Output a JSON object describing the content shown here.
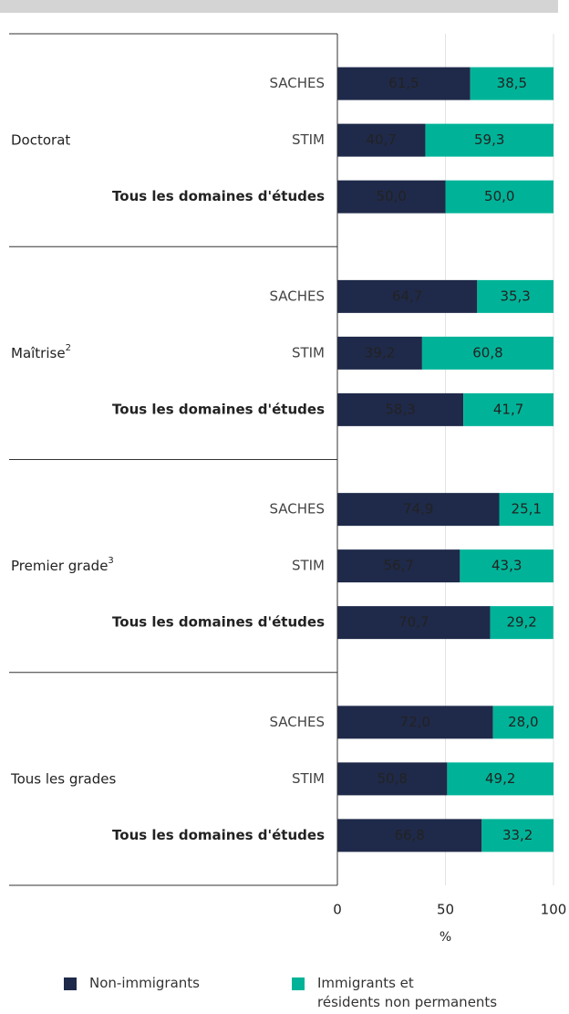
{
  "chart_data": {
    "type": "stacked-bar-horizontal",
    "groups": [
      {
        "label": "Doctorat",
        "categories": [
          "SACHES",
          "STIM",
          "Tous les domaines d'études"
        ]
      },
      {
        "label": "Maîtrise",
        "note": "2",
        "categories": [
          "SACHES",
          "STIM",
          "Tous les domaines d'études"
        ]
      },
      {
        "label": "Premier grade",
        "note": "3",
        "categories": [
          "SACHES",
          "STIM",
          "Tous les domaines d'études"
        ]
      },
      {
        "label": "Tous les grades",
        "categories": [
          "SACHES",
          "STIM",
          "Tous les domaines d'études"
        ]
      }
    ],
    "series": [
      {
        "name": "Non-immigrants",
        "color": "#1f2a4a",
        "values": [
          61.5,
          40.7,
          50.0,
          64.7,
          39.2,
          58.3,
          74.9,
          56.7,
          70.7,
          72.0,
          50.8,
          66.8
        ],
        "value_labels": [
          "61,5",
          "40,7",
          "50,0",
          "64,7",
          "39,2",
          "58,3",
          "74,9",
          "56,7",
          "70,7",
          "72,0",
          "50,8",
          "66,8"
        ]
      },
      {
        "name": "Immigrants et\nrésidents non permanents",
        "color": "#00b398",
        "values": [
          38.5,
          59.3,
          50.0,
          35.3,
          60.8,
          41.7,
          25.1,
          43.3,
          29.2,
          28.0,
          49.2,
          33.2
        ],
        "value_labels": [
          "38,5",
          "59,3",
          "50,0",
          "35,3",
          "60,8",
          "41,7",
          "25,1",
          "43,3",
          "29,2",
          "28,0",
          "49,2",
          "33,2"
        ]
      }
    ],
    "xlim": [
      0,
      100
    ],
    "xticks": [
      0,
      50,
      100
    ],
    "xlabel": "%",
    "grid": true
  }
}
